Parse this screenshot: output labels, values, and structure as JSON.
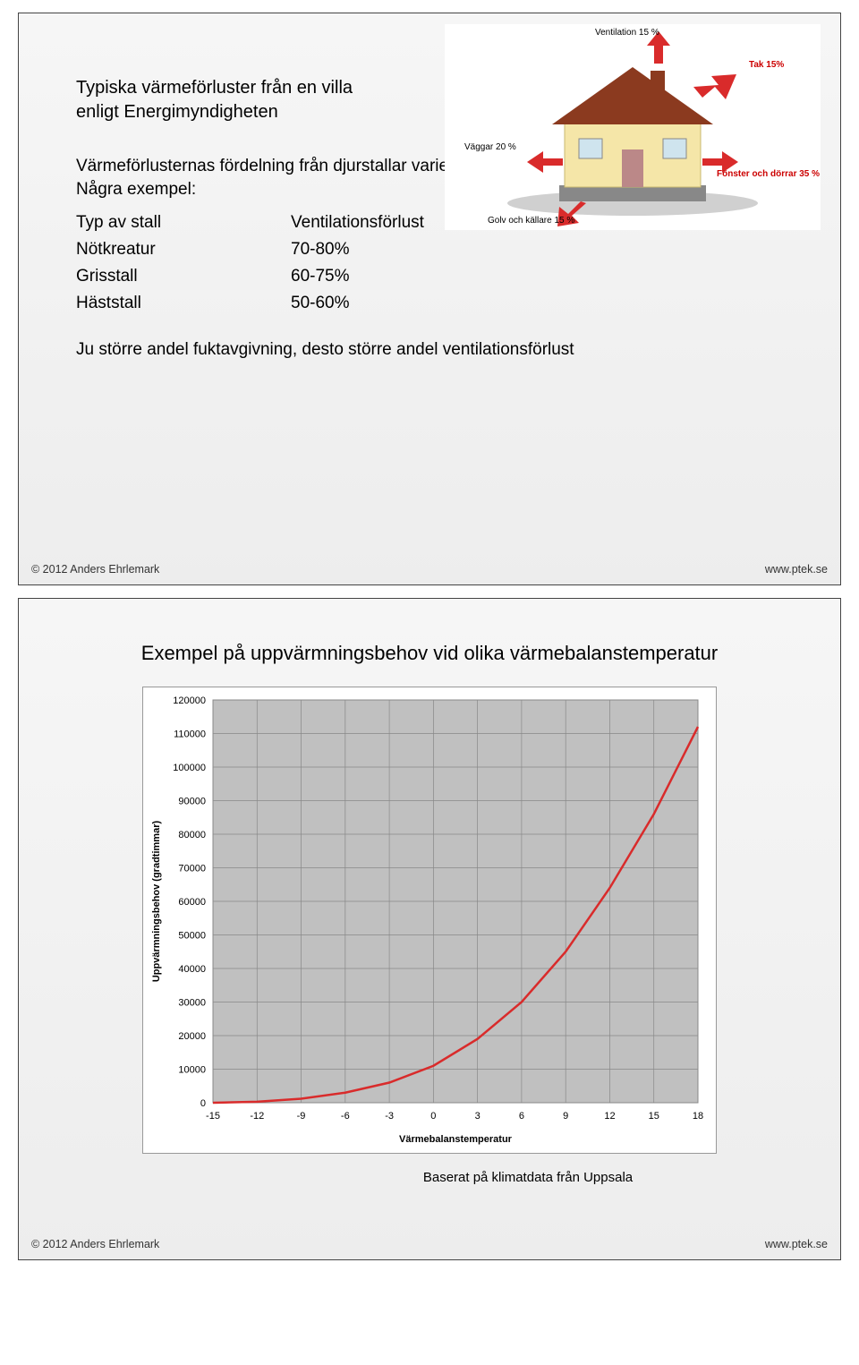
{
  "slide1": {
    "heading": "Typiska värmeförluster från en villa enligt Energimyndigheten",
    "intro": "Värmeförlusternas fördelning från djurstallar varierar beroende på djurslag och lokalklimat. Några exempel:",
    "table": {
      "header_left": "Typ av stall",
      "header_right": "Ventilationsförlust",
      "rows": [
        {
          "left": "Nötkreatur",
          "right": "70-80%"
        },
        {
          "left": "Grisstall",
          "right": "60-75%"
        },
        {
          "left": "Häststall",
          "right": "50-60%"
        }
      ]
    },
    "note": "Ju större andel fuktavgivning, desto större andel ventilationsförlust",
    "diagram": {
      "labels": {
        "ventilation": "Ventilation 15 %",
        "tak": "Tak 15%",
        "walls": "Väggar 20 %",
        "windows": "Fönster och dörrar 35 %",
        "floor": "Golv och källare 15 %"
      },
      "colors": {
        "roof": "#8b3a1f",
        "wall": "#f5e6a8",
        "foundation": "#888",
        "arrow": "#d92b2b",
        "bg": "#ffffff"
      }
    }
  },
  "slide2": {
    "title": "Exempel på uppvärmningsbehov vid olika värmebalanstemperatur",
    "chart": {
      "type": "line",
      "xlabel": "Värmebalanstemperatur",
      "ylabel": "Uppvärmningsbehov (gradtimmar)",
      "xlim": [
        -15,
        18
      ],
      "ylim": [
        0,
        120000
      ],
      "xtick_step": 3,
      "ytick_step": 10000,
      "xticks": [
        -15,
        -12,
        -9,
        -6,
        -3,
        0,
        3,
        6,
        9,
        12,
        15,
        18
      ],
      "yticks": [
        0,
        10000,
        20000,
        30000,
        40000,
        50000,
        60000,
        70000,
        80000,
        90000,
        100000,
        110000,
        120000
      ],
      "series": {
        "color": "#d92b2b",
        "width": 2.5,
        "points": [
          {
            "x": -15,
            "y": 0
          },
          {
            "x": -12,
            "y": 300
          },
          {
            "x": -9,
            "y": 1200
          },
          {
            "x": -6,
            "y": 3000
          },
          {
            "x": -3,
            "y": 6000
          },
          {
            "x": 0,
            "y": 11000
          },
          {
            "x": 3,
            "y": 19000
          },
          {
            "x": 6,
            "y": 30000
          },
          {
            "x": 9,
            "y": 45000
          },
          {
            "x": 12,
            "y": 64000
          },
          {
            "x": 15,
            "y": 86000
          },
          {
            "x": 18,
            "y": 112000
          }
        ]
      },
      "plot_bg": "#c0c0c0",
      "grid_color": "#888888",
      "axis_color": "#000000",
      "background": "#ffffff",
      "label_fontsize": 11
    },
    "caption": "Baserat på klimatdata från Uppsala"
  },
  "footer": {
    "copyright": "© 2012 Anders Ehrlemark",
    "url": "www.ptek.se"
  }
}
